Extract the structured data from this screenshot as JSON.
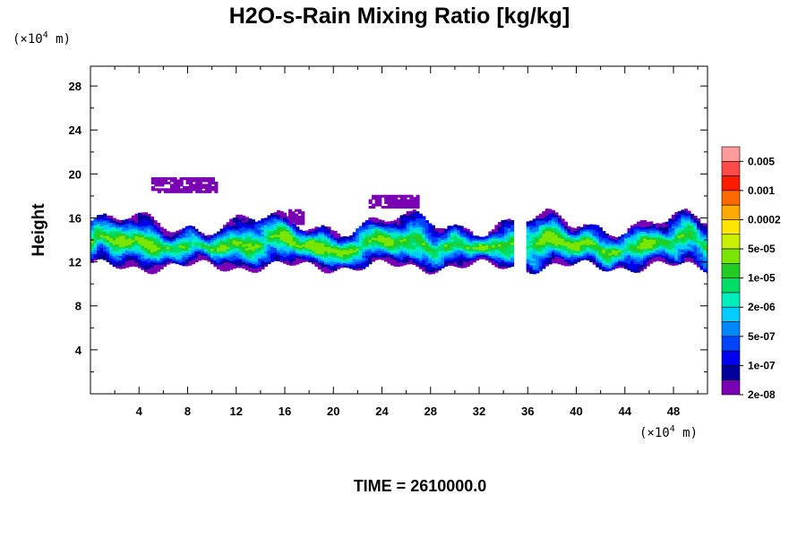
{
  "chart_data": {
    "type": "heatmap",
    "title": "H2O-s-Rain Mixing Ratio [kg/kg]",
    "xlabel": "",
    "ylabel": "Height",
    "x_unit": "(×10",
    "x_unit_exp": "4",
    "x_unit_suffix": " m)",
    "y_unit": "(×10",
    "y_unit_exp": "4",
    "y_unit_suffix": " m)",
    "xlim": [
      0,
      50.8
    ],
    "ylim": [
      0,
      29.8
    ],
    "x_ticks": [
      4,
      8,
      12,
      16,
      20,
      24,
      28,
      32,
      36,
      40,
      44,
      48
    ],
    "y_ticks": [
      4,
      8,
      12,
      16,
      20,
      24,
      28
    ],
    "grid": false,
    "footer": "TIME = 2610000.0",
    "colorbar": {
      "placement": "right",
      "labels": [
        "0.005",
        "0.001",
        "0.0002",
        "5e-05",
        "1e-05",
        "2e-06",
        "5e-07",
        "1e-07",
        "2e-08"
      ],
      "colors": [
        "#ff9b9b",
        "#ff4a4a",
        "#ff1a00",
        "#ff6a00",
        "#ffaa00",
        "#ffe600",
        "#c8f000",
        "#7ae600",
        "#22cc22",
        "#00dd66",
        "#00eebb",
        "#00ccff",
        "#0088ff",
        "#0044ff",
        "#0000ee",
        "#00009a",
        "#7a00b4"
      ]
    },
    "rain_band": {
      "description_levels": "level index 0=lowest (purple) .. 16=highest",
      "x_range": [
        0,
        50.8
      ],
      "height_range": [
        11,
        16.5
      ],
      "core_height_range": [
        12,
        15
      ],
      "gap_x_range": [
        34.8,
        35.8
      ],
      "isolated_patches": [
        {
          "x": [
            5.0,
            10.2
          ],
          "y": [
            18.3,
            19.5
          ]
        },
        {
          "x": [
            22.9,
            26.9
          ],
          "y": [
            16.9,
            18.0
          ]
        },
        {
          "x": [
            16.3,
            17.6
          ],
          "y": [
            15.4,
            16.6
          ]
        }
      ]
    }
  }
}
